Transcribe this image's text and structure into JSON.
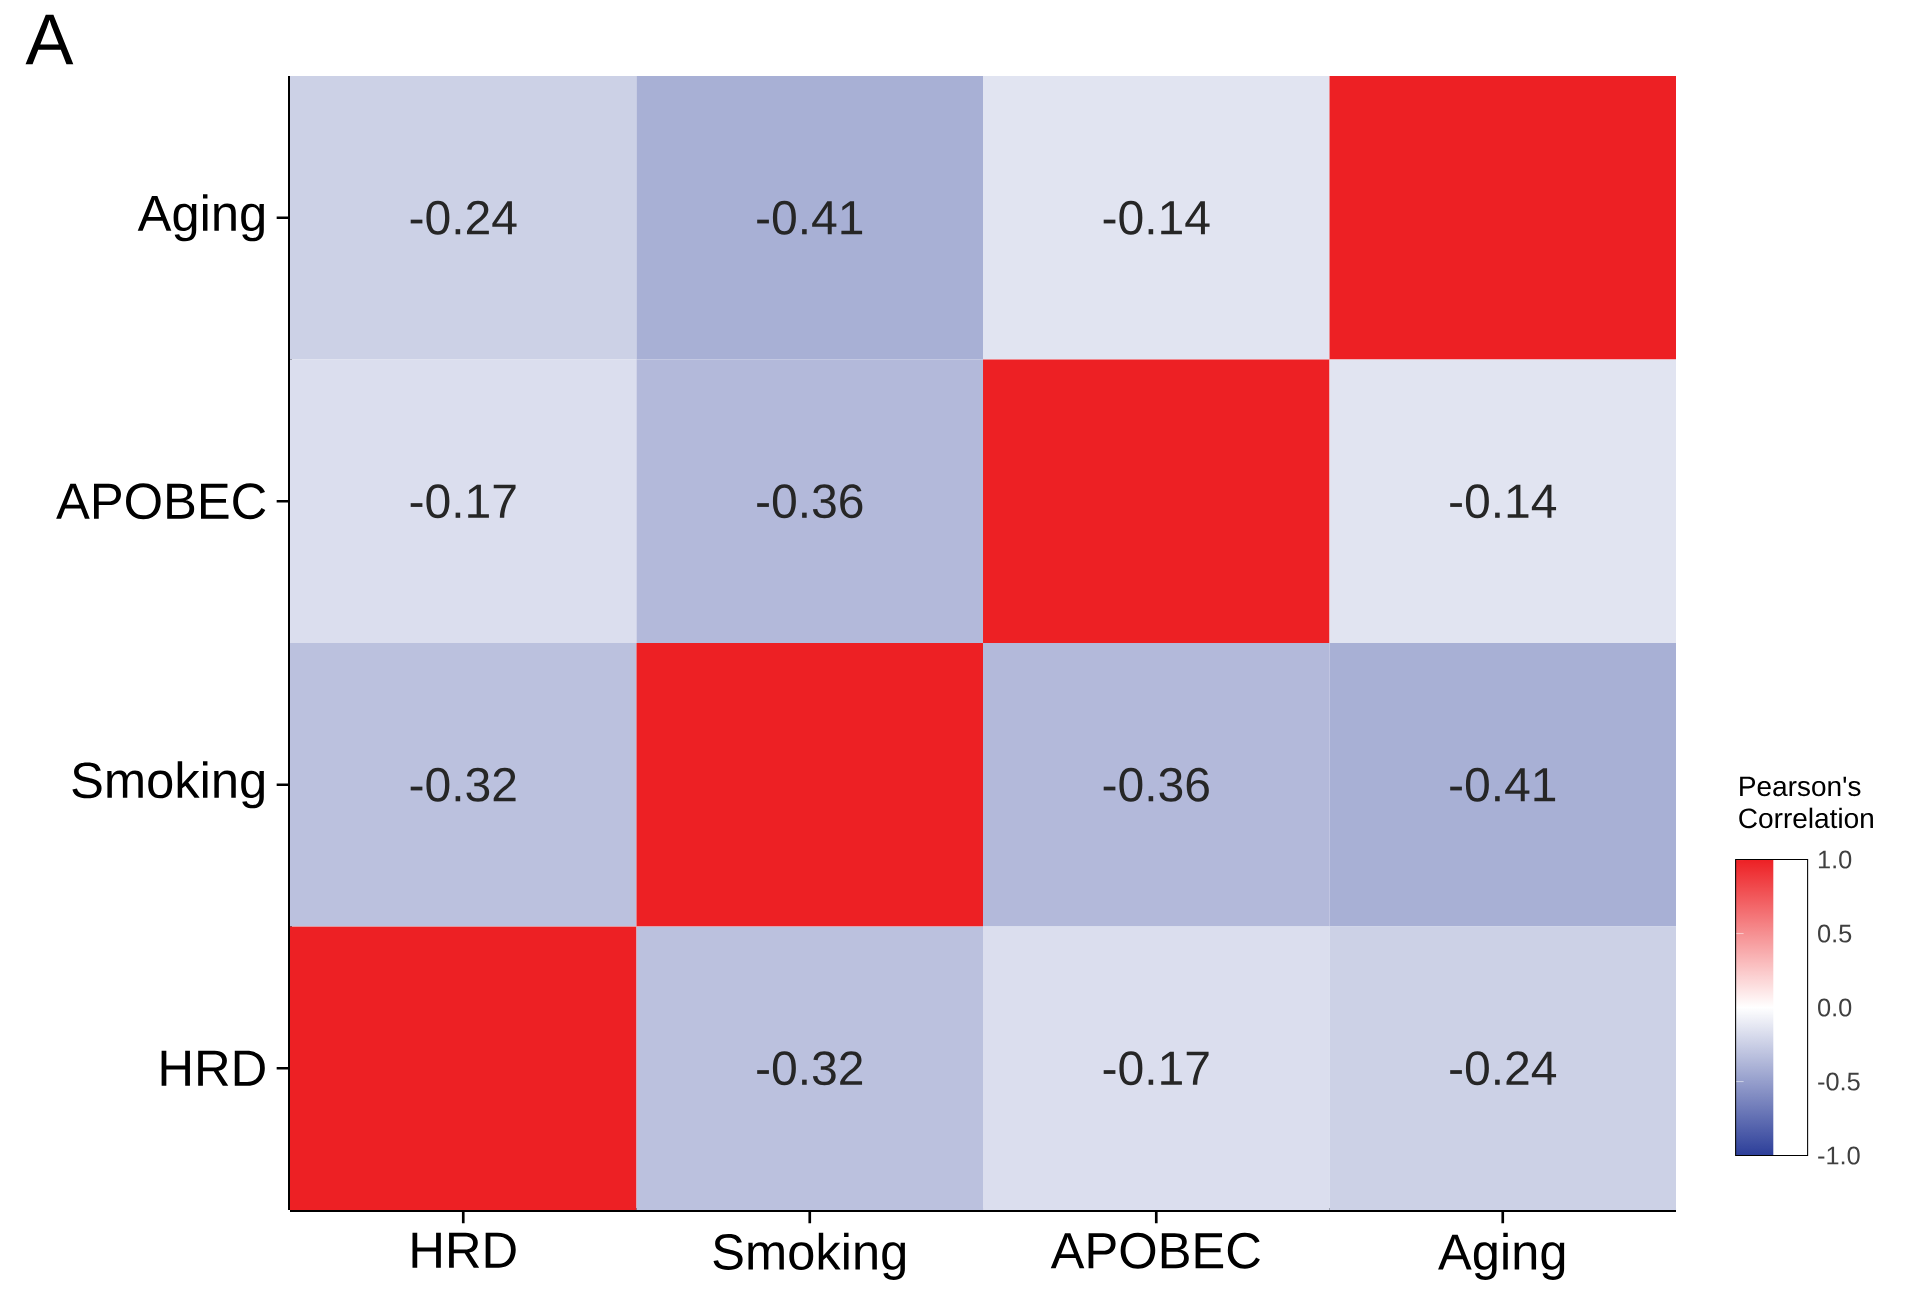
{
  "chart_data": {
    "type": "heatmap",
    "annotations": [
      "A"
    ],
    "categories": [
      "HRD",
      "Smoking",
      "APOBEC",
      "Aging"
    ],
    "y_categories": [
      "Aging",
      "APOBEC",
      "Smoking",
      "HRD"
    ],
    "cells": [
      [
        -0.24,
        -0.41,
        -0.14,
        1
      ],
      [
        -0.17,
        -0.36,
        1,
        -0.14
      ],
      [
        -0.32,
        1,
        -0.36,
        -0.41
      ],
      [
        1,
        -0.32,
        -0.17,
        -0.24
      ]
    ],
    "cell_labels": [
      [
        "-0.24",
        "-0.41",
        "-0.14",
        null
      ],
      [
        "-0.17",
        "-0.36",
        null,
        "-0.14"
      ],
      [
        "-0.32",
        null,
        "-0.36",
        "-0.41"
      ],
      [
        null,
        "-0.32",
        "-0.17",
        "-0.24"
      ]
    ],
    "clabel": "Pearson's Correlation",
    "clim": [
      -1,
      1
    ],
    "cticks": [
      {
        "value": 1,
        "label": "1.0"
      },
      {
        "value": 0.5,
        "label": "0.5"
      },
      {
        "value": 0,
        "label": "0.0"
      },
      {
        "value": -0.5,
        "label": "-0.5"
      },
      {
        "value": -1,
        "label": "-1.0"
      }
    ]
  }
}
